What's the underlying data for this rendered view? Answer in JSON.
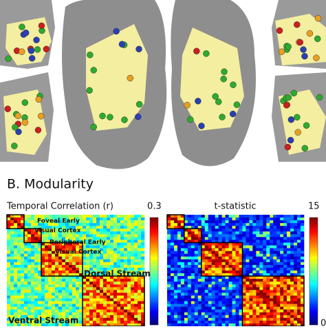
{
  "panel_label": "B. Modularity",
  "matrices": [
    {
      "title": "Temporal Correlation (r)",
      "colorbar_max": "0.3",
      "region_labels": [
        "Foveal Early",
        "Visual Cortex",
        "Peripheral Early",
        "Visual Cortex",
        "Dorsal Stream",
        "Ventral Stream"
      ]
    },
    {
      "title": "t-statistic",
      "colorbar_max": "15",
      "colorbar_min": "0"
    }
  ]
}
